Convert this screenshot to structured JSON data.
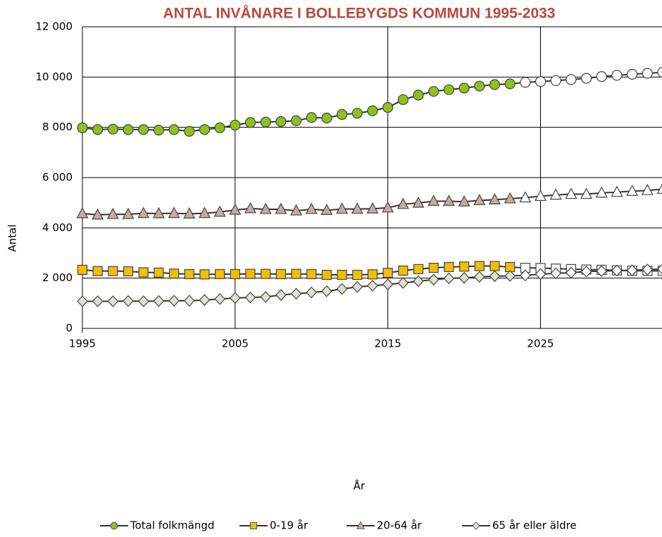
{
  "chart_data": {
    "type": "line",
    "title": "ANTAL INVÅNARE I BOLLEBYGDS KOMMUN 1995-2033",
    "x_label": "År",
    "y_label": "Antal",
    "x": [
      1995,
      1996,
      1997,
      1998,
      1999,
      2000,
      2001,
      2002,
      2003,
      2004,
      2005,
      2006,
      2007,
      2008,
      2009,
      2010,
      2011,
      2012,
      2013,
      2014,
      2015,
      2016,
      2017,
      2018,
      2019,
      2020,
      2021,
      2022,
      2023,
      2024,
      2025,
      2026,
      2027,
      2028,
      2029,
      2030,
      2031,
      2032,
      2033
    ],
    "open_from_x": 2024,
    "open_color": "#ffffff",
    "line_color": "#333333",
    "series": [
      {
        "name": "Total folkmängd",
        "marker": "circle",
        "color": "#8cc21e",
        "values": [
          7980,
          7910,
          7930,
          7910,
          7910,
          7890,
          7910,
          7840,
          7910,
          7980,
          8090,
          8190,
          8210,
          8230,
          8260,
          8390,
          8370,
          8510,
          8560,
          8660,
          8790,
          9100,
          9280,
          9430,
          9500,
          9560,
          9640,
          9700,
          9730,
          9790,
          9820,
          9860,
          9900,
          9950,
          10020,
          10070,
          10110,
          10150,
          10190
        ]
      },
      {
        "name": "0-19 år",
        "marker": "square",
        "color": "#f5bd00",
        "values": [
          2330,
          2280,
          2280,
          2270,
          2230,
          2220,
          2180,
          2160,
          2150,
          2160,
          2160,
          2170,
          2170,
          2160,
          2170,
          2160,
          2130,
          2130,
          2130,
          2150,
          2210,
          2300,
          2360,
          2410,
          2440,
          2460,
          2480,
          2480,
          2440,
          2410,
          2400,
          2380,
          2360,
          2340,
          2330,
          2310,
          2300,
          2290,
          2290
        ]
      },
      {
        "name": "20-64 år",
        "marker": "triangle",
        "color": "#c9ab9b",
        "values": [
          4570,
          4520,
          4540,
          4540,
          4580,
          4570,
          4580,
          4560,
          4580,
          4630,
          4710,
          4770,
          4740,
          4740,
          4680,
          4740,
          4700,
          4750,
          4750,
          4760,
          4800,
          4940,
          4990,
          5060,
          5060,
          5040,
          5090,
          5120,
          5160,
          5200,
          5260,
          5310,
          5340,
          5340,
          5390,
          5420,
          5460,
          5490,
          5540
        ]
      },
      {
        "name": "65 år eller äldre",
        "marker": "diamond",
        "color": "#e2dfd2",
        "values": [
          1080,
          1080,
          1080,
          1090,
          1080,
          1090,
          1100,
          1100,
          1130,
          1170,
          1210,
          1230,
          1250,
          1330,
          1380,
          1430,
          1480,
          1570,
          1650,
          1700,
          1750,
          1810,
          1880,
          1940,
          1990,
          2010,
          2050,
          2080,
          2090,
          2110,
          2160,
          2190,
          2220,
          2260,
          2280,
          2300,
          2310,
          2340,
          2360
        ]
      }
    ],
    "xlim": [
      1995,
      2033
    ],
    "xticks": [
      1995,
      2005,
      2015,
      2025
    ],
    "ylim": [
      0,
      12000
    ],
    "yticks": [
      0,
      {
        "value": 2000,
        "label": "2 000"
      },
      {
        "value": 4000,
        "label": "4 000"
      },
      {
        "value": 6000,
        "label": "6 000"
      },
      {
        "value": 8000,
        "label": "8 000"
      },
      {
        "value": 10000,
        "label": "10 000"
      },
      {
        "value": 12000,
        "label": "12 000"
      }
    ],
    "grid": true,
    "legend": "bottom"
  }
}
